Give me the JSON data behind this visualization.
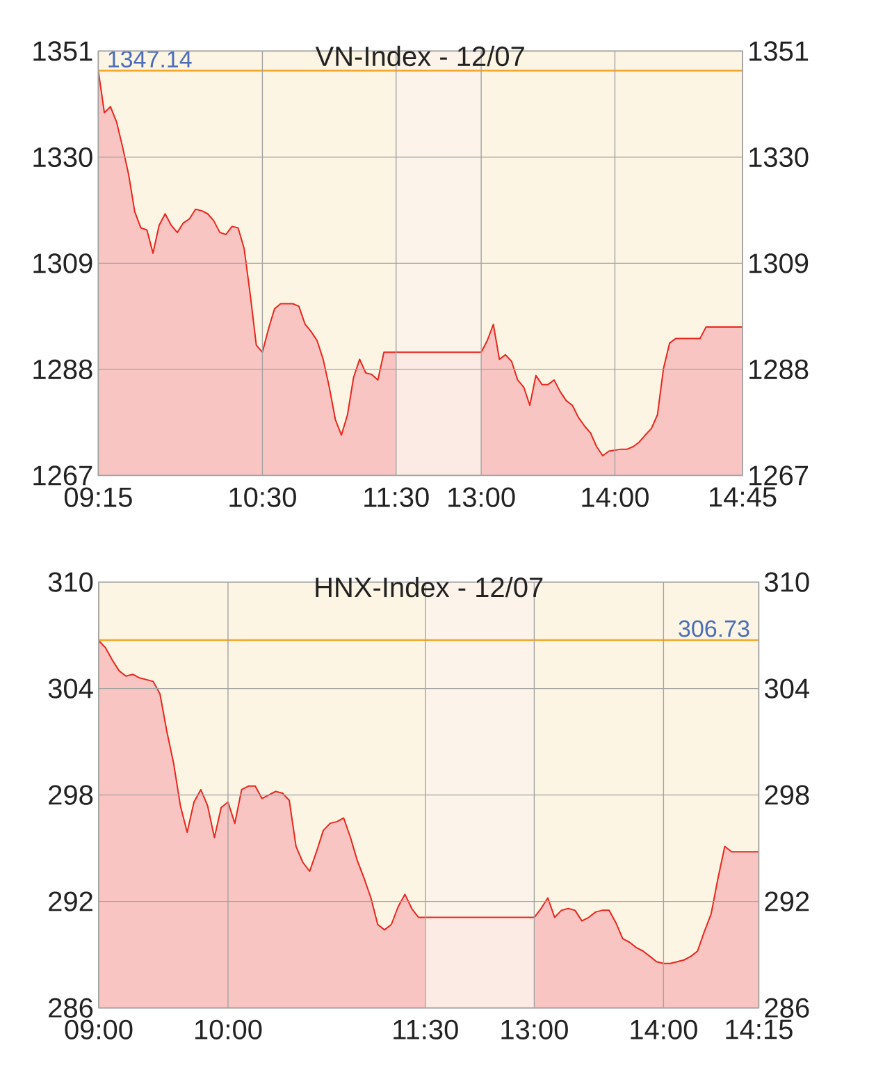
{
  "chart_data": [
    {
      "type": "area",
      "title": "VN-Index - 12/07",
      "categories": [
        "09:15",
        null,
        null,
        null,
        null,
        null,
        null,
        null,
        null,
        null,
        null,
        null,
        null,
        null,
        null,
        null,
        null,
        null,
        null,
        null,
        null,
        null,
        null,
        null,
        null,
        null,
        null,
        "10:30",
        null,
        null,
        null,
        null,
        null,
        null,
        null,
        null,
        null,
        null,
        null,
        null,
        null,
        null,
        null,
        null,
        null,
        null,
        null,
        null,
        null,
        "11:30",
        null,
        null,
        null,
        null,
        null,
        null,
        null,
        null,
        null,
        null,
        null,
        null,
        null,
        "13:00",
        null,
        null,
        null,
        null,
        null,
        null,
        null,
        null,
        null,
        null,
        null,
        null,
        null,
        null,
        null,
        null,
        null,
        null,
        null,
        null,
        null,
        "14:00",
        null,
        null,
        null,
        null,
        null,
        null,
        null,
        null,
        null,
        null,
        null,
        null,
        null,
        null,
        null,
        null,
        null,
        null,
        null,
        null,
        "14:45"
      ],
      "series": [
        {
          "color": "#e8271e",
          "values": [
            1347.1,
            1338.8,
            1340.0,
            1337.0,
            1332.0,
            1326.5,
            1319.2,
            1316.0,
            1315.6,
            1311.0,
            1316.5,
            1318.8,
            1316.5,
            1315.1,
            1317.0,
            1317.8,
            1319.7,
            1319.4,
            1318.8,
            1317.4,
            1315.1,
            1314.7,
            1316.3,
            1316.0,
            1311.9,
            1302.8,
            1292.8,
            1291.4,
            1296.0,
            1300.0,
            1301.0,
            1301.0,
            1301.0,
            1300.5,
            1297.0,
            1295.5,
            1293.7,
            1290.0,
            1284.5,
            1278.1,
            1275.0,
            1279.0,
            1286.4,
            1290.0,
            1287.3,
            1287.0,
            1285.9,
            1291.4,
            1291.4,
            1291.4,
            1291.4,
            1291.4,
            1291.4,
            1291.4,
            1291.4,
            1291.4,
            1291.4,
            1291.4,
            1291.4,
            1291.4,
            1291.4,
            1291.4,
            1291.4,
            1291.4,
            1293.7,
            1296.9,
            1290.0,
            1290.9,
            1289.6,
            1285.9,
            1284.5,
            1280.9,
            1286.8,
            1285.0,
            1285.0,
            1285.9,
            1283.6,
            1281.8,
            1280.9,
            1278.5,
            1276.8,
            1275.4,
            1272.7,
            1270.9,
            1271.8,
            1272.0,
            1272.2,
            1272.2,
            1272.7,
            1273.6,
            1275.0,
            1276.3,
            1279.0,
            1288.2,
            1293.2,
            1294.1,
            1294.1,
            1294.1,
            1294.1,
            1294.1,
            1296.4,
            1296.4,
            1296.4,
            1296.4,
            1296.4,
            1296.4,
            1296.4
          ]
        }
      ],
      "ylim": [
        1267,
        1351
      ],
      "yticks": [
        1267,
        1288,
        1309,
        1330,
        1351
      ],
      "y2lim": [
        1267,
        1351
      ],
      "y2ticks": [
        1267,
        1288,
        1309,
        1330,
        1351
      ],
      "ref_lines": [
        {
          "axis": "y",
          "value": 1347.14,
          "label": "1347.14",
          "color": "#f5a524"
        }
      ],
      "bands": [
        {
          "axis": "x",
          "from": "11:30",
          "to": "13:00",
          "color": "#fbf4ec"
        }
      ],
      "grid": true
    },
    {
      "type": "area",
      "title": "HNX-Index - 12/07",
      "categories": [
        "09:00",
        null,
        null,
        null,
        null,
        null,
        null,
        null,
        null,
        null,
        null,
        null,
        null,
        null,
        null,
        null,
        null,
        null,
        null,
        "10:00",
        null,
        null,
        null,
        null,
        null,
        null,
        null,
        null,
        null,
        null,
        null,
        null,
        null,
        null,
        null,
        null,
        null,
        null,
        null,
        null,
        null,
        null,
        null,
        null,
        null,
        null,
        null,
        null,
        "11:30",
        null,
        null,
        null,
        null,
        null,
        null,
        null,
        null,
        null,
        null,
        null,
        null,
        null,
        null,
        null,
        "13:00",
        null,
        null,
        null,
        null,
        null,
        null,
        null,
        null,
        null,
        null,
        null,
        null,
        null,
        null,
        null,
        null,
        null,
        null,
        "14:00",
        null,
        null,
        null,
        null,
        null,
        null,
        null,
        null,
        null,
        null,
        null,
        null,
        null,
        "14:15"
      ],
      "series": [
        {
          "color": "#e8271e",
          "values": [
            306.7,
            306.3,
            305.6,
            305.0,
            304.7,
            304.8,
            304.6,
            304.5,
            304.4,
            303.7,
            301.6,
            299.8,
            297.4,
            295.9,
            297.6,
            298.3,
            297.4,
            295.6,
            297.3,
            297.6,
            296.4,
            298.3,
            298.5,
            298.5,
            297.8,
            298.0,
            298.2,
            298.1,
            297.7,
            295.1,
            294.2,
            293.7,
            294.8,
            296.0,
            296.4,
            296.5,
            296.7,
            295.6,
            294.3,
            293.3,
            292.2,
            290.7,
            290.4,
            290.7,
            291.7,
            292.4,
            291.6,
            291.1,
            291.1,
            291.1,
            291.1,
            291.1,
            291.1,
            291.1,
            291.1,
            291.1,
            291.1,
            291.1,
            291.1,
            291.1,
            291.1,
            291.1,
            291.1,
            291.1,
            291.1,
            291.6,
            292.2,
            291.1,
            291.5,
            291.6,
            291.5,
            290.9,
            291.1,
            291.4,
            291.5,
            291.5,
            290.8,
            289.9,
            289.7,
            289.4,
            289.2,
            288.9,
            288.6,
            288.5,
            288.5,
            288.6,
            288.7,
            288.9,
            289.2,
            290.3,
            291.3,
            293.3,
            295.1,
            294.8,
            294.8,
            294.8,
            294.8,
            294.8
          ]
        }
      ],
      "ylim": [
        286,
        310
      ],
      "yticks": [
        286,
        292,
        298,
        304,
        310
      ],
      "y2lim": [
        286,
        310
      ],
      "y2ticks": [
        286,
        292,
        298,
        304,
        310
      ],
      "ref_lines": [
        {
          "axis": "y",
          "value": 306.73,
          "label": "306.73",
          "color": "#f5a524"
        }
      ],
      "bands": [
        {
          "axis": "x",
          "from": "11:30",
          "to": "13:00",
          "color": "#fbf4ec"
        }
      ],
      "grid": true
    }
  ]
}
